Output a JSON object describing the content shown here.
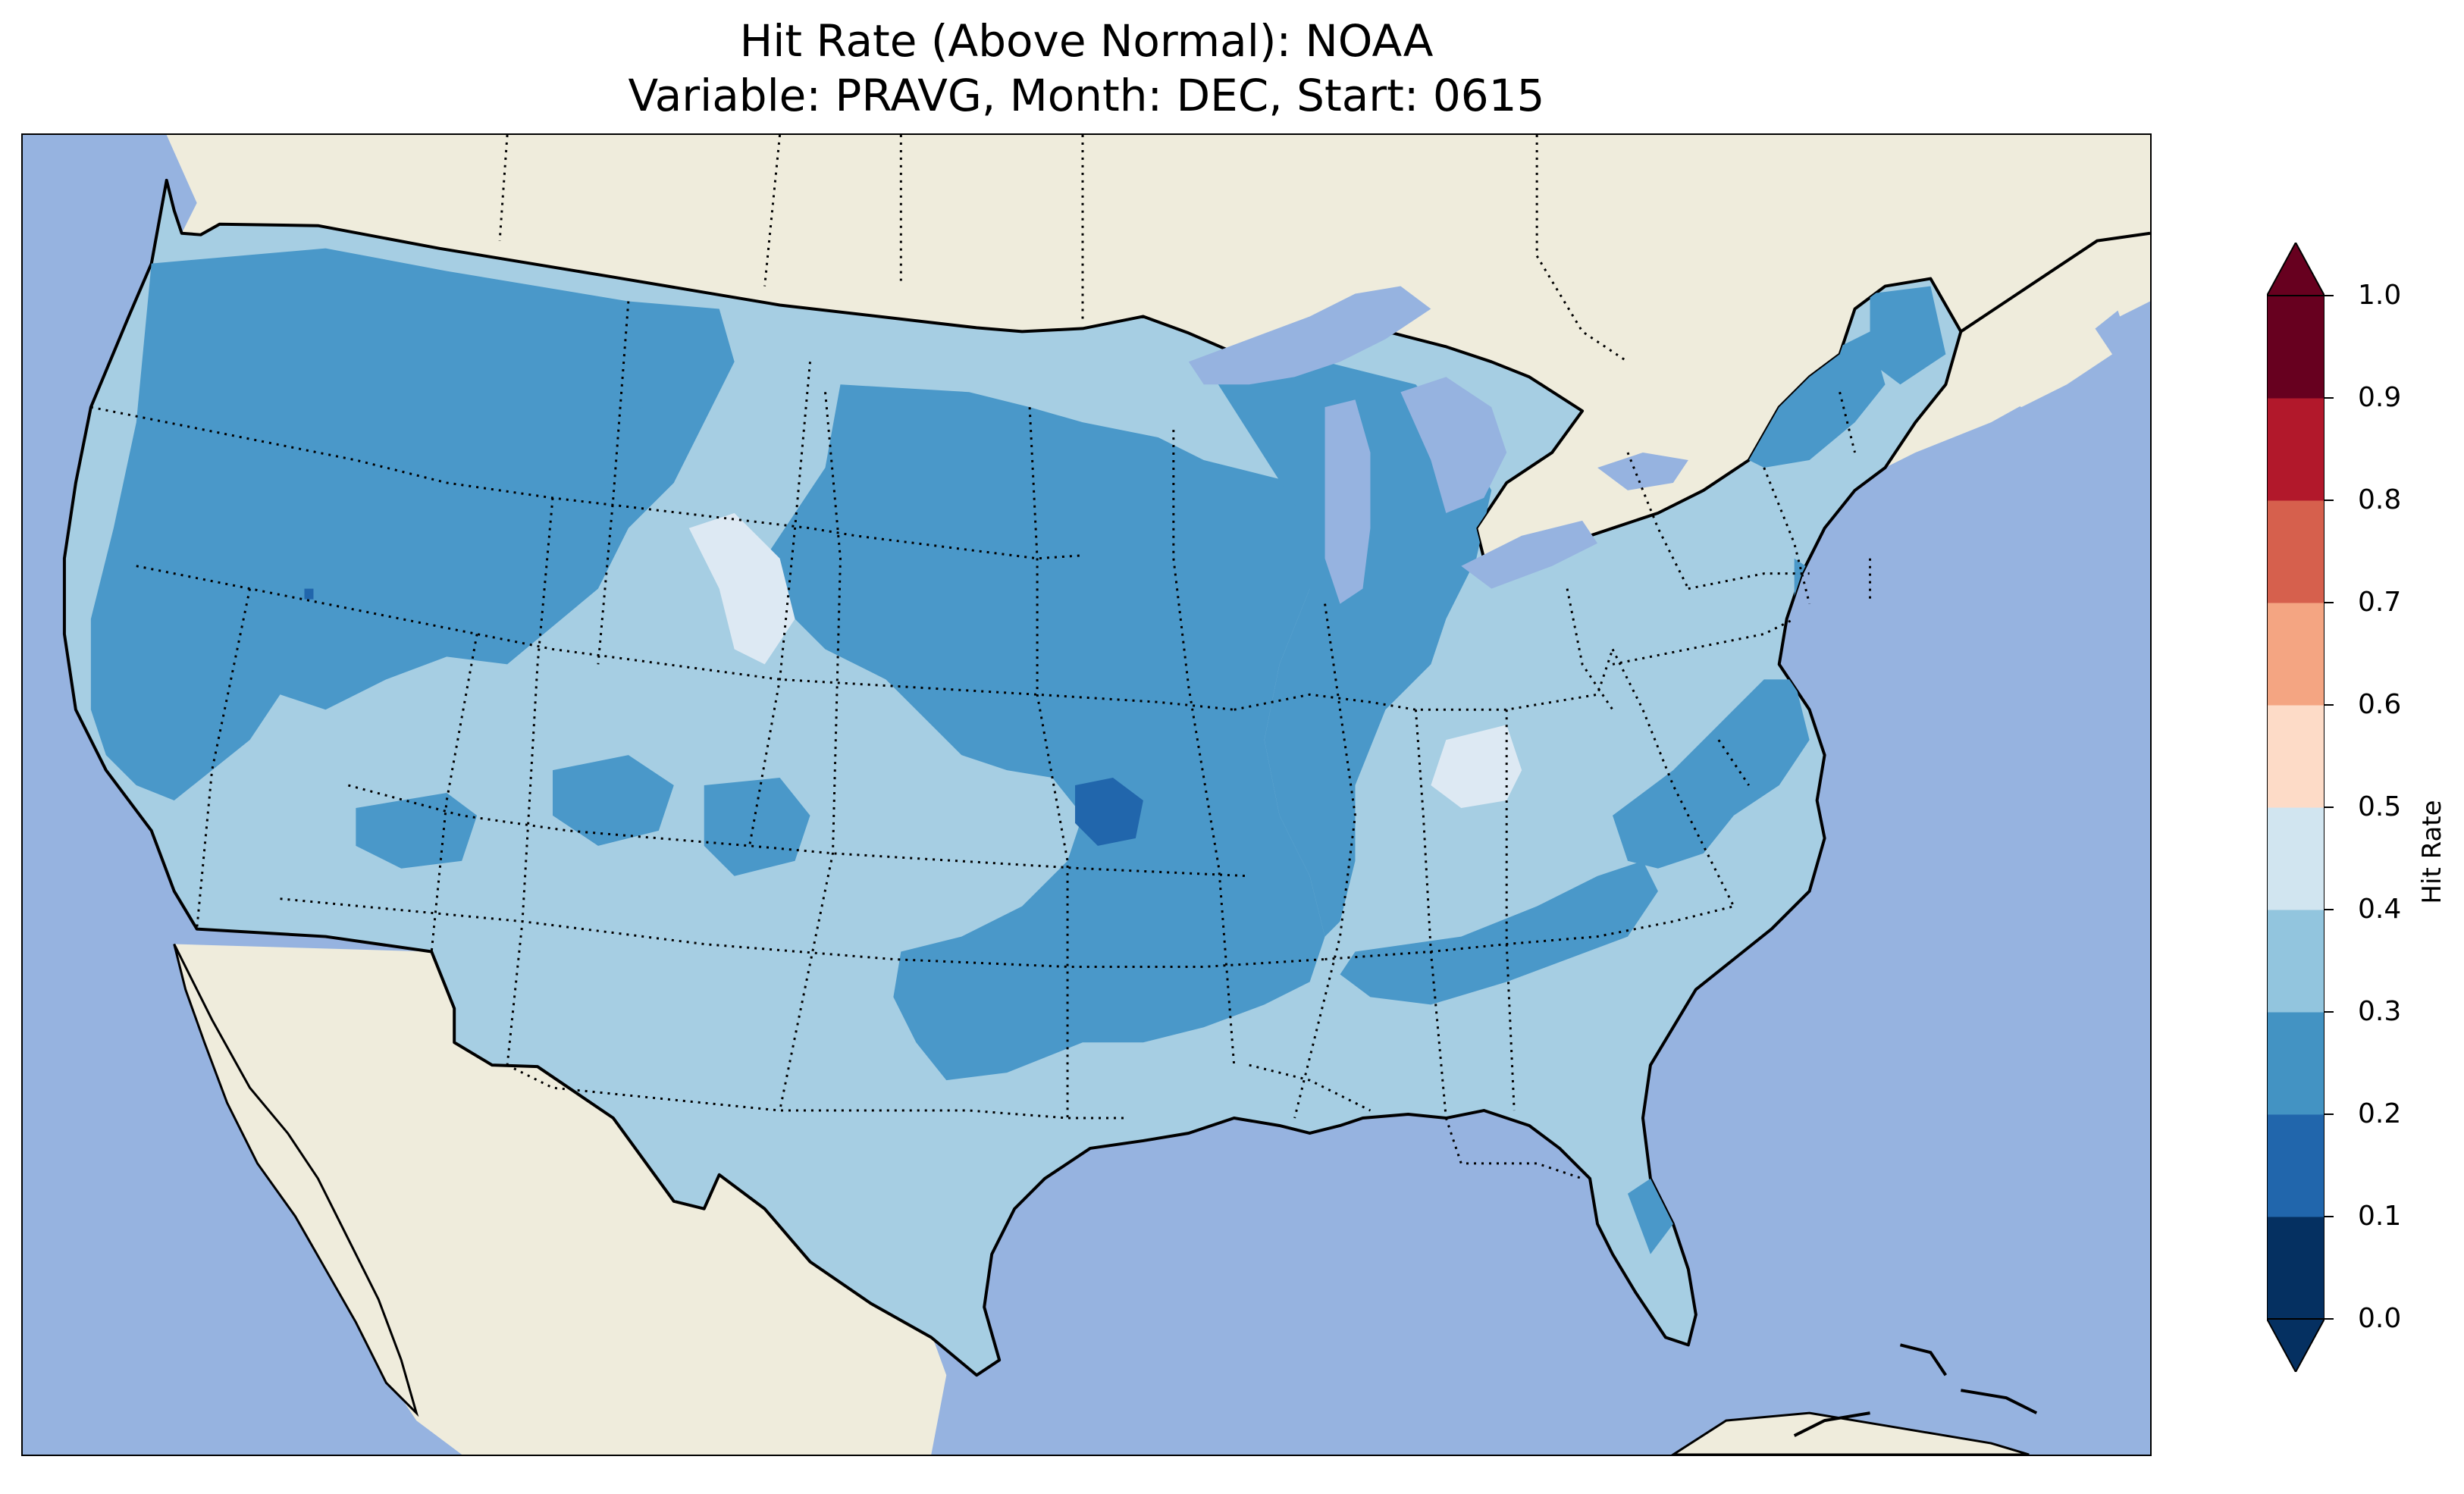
{
  "title": {
    "line1": "Hit Rate (Above Normal): NOAA",
    "line2": "Variable: PRAVG, Month: DEC, Start: 0615"
  },
  "map": {
    "region": "Contiguous United States",
    "ocean_color": "#96b3e0",
    "land_color": "#efecdc",
    "coastline_color": "#000000",
    "state_border_style": "dotted"
  },
  "colorbar": {
    "label": "Hit Rate",
    "ticks": [
      "0.0",
      "0.1",
      "0.2",
      "0.3",
      "0.4",
      "0.5",
      "0.6",
      "0.7",
      "0.8",
      "0.9",
      "1.0"
    ],
    "extend": "both",
    "colors": [
      "#053061",
      "#2166ac",
      "#4393c3",
      "#92c5de",
      "#d1e5f0",
      "#fddbc7",
      "#f4a582",
      "#d6604d",
      "#b2182b",
      "#67001f"
    ],
    "under_color": "#053061",
    "over_color": "#67001f"
  },
  "field": {
    "bins_present": [
      "0.1-0.2",
      "0.2-0.3",
      "0.3-0.4",
      "0.4-0.5"
    ],
    "bin_colors": {
      "0.1-0.2": "#2166ac",
      "0.2-0.3": "#4a98c9",
      "0.3-0.4": "#a6cee3",
      "0.4-0.5": "#dde9f3"
    }
  }
}
